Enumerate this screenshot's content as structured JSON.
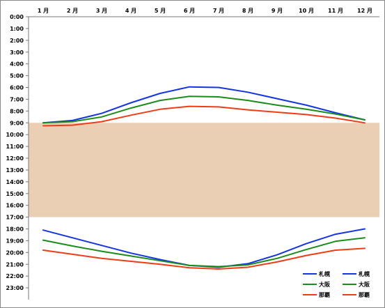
{
  "chart_data": {
    "type": "line",
    "categories": [
      "1 月",
      "2 月",
      "3 月",
      "4 月",
      "5 月",
      "6 月",
      "7 月",
      "8 月",
      "9 月",
      "10 月",
      "11 月",
      "12 月"
    ],
    "y_tick_labels": [
      "0:00",
      "1:00",
      "2:00",
      "3:00",
      "4:00",
      "5:00",
      "6:00",
      "7:00",
      "8:00",
      "9:00",
      "10:00",
      "11:00",
      "12:00",
      "13:00",
      "14:00",
      "15:00",
      "16:00",
      "17:00",
      "18:00",
      "19:00",
      "20:00",
      "21:00",
      "22:00",
      "23:00"
    ],
    "ylim": [
      0,
      24
    ],
    "y_reversed": true,
    "shaded_band": {
      "from": 9,
      "to": 17,
      "color": "#ebcfb5"
    },
    "grid": false,
    "legend_position": "bottom-right",
    "series": [
      {
        "name": "札幌",
        "kind": "sunrise",
        "color": "#1433e6",
        "values": [
          9.0,
          8.8,
          8.2,
          7.3,
          6.5,
          5.95,
          6.0,
          6.4,
          6.95,
          7.5,
          8.15,
          8.75
        ]
      },
      {
        "name": "大阪",
        "kind": "sunrise",
        "color": "#1a8c1a",
        "values": [
          9.0,
          8.9,
          8.5,
          7.75,
          7.1,
          6.75,
          6.8,
          7.1,
          7.5,
          7.85,
          8.25,
          8.75
        ]
      },
      {
        "name": "那覇",
        "kind": "sunrise",
        "color": "#f03c14",
        "values": [
          9.25,
          9.2,
          8.9,
          8.35,
          7.85,
          7.6,
          7.65,
          7.9,
          8.1,
          8.3,
          8.6,
          9.0
        ]
      },
      {
        "name": "札幌",
        "kind": "sunset",
        "color": "#1433e6",
        "values": [
          18.1,
          18.75,
          19.4,
          20.05,
          20.6,
          21.1,
          21.25,
          20.95,
          20.2,
          19.25,
          18.45,
          18.0
        ]
      },
      {
        "name": "大阪",
        "kind": "sunset",
        "color": "#1a8c1a",
        "values": [
          18.95,
          19.45,
          19.9,
          20.3,
          20.7,
          21.1,
          21.2,
          21.05,
          20.5,
          19.75,
          19.05,
          18.75
        ]
      },
      {
        "name": "那覇",
        "kind": "sunset",
        "color": "#f03c14",
        "values": [
          19.8,
          20.15,
          20.5,
          20.75,
          21.0,
          21.3,
          21.4,
          21.25,
          20.8,
          20.25,
          19.8,
          19.65
        ]
      }
    ]
  }
}
